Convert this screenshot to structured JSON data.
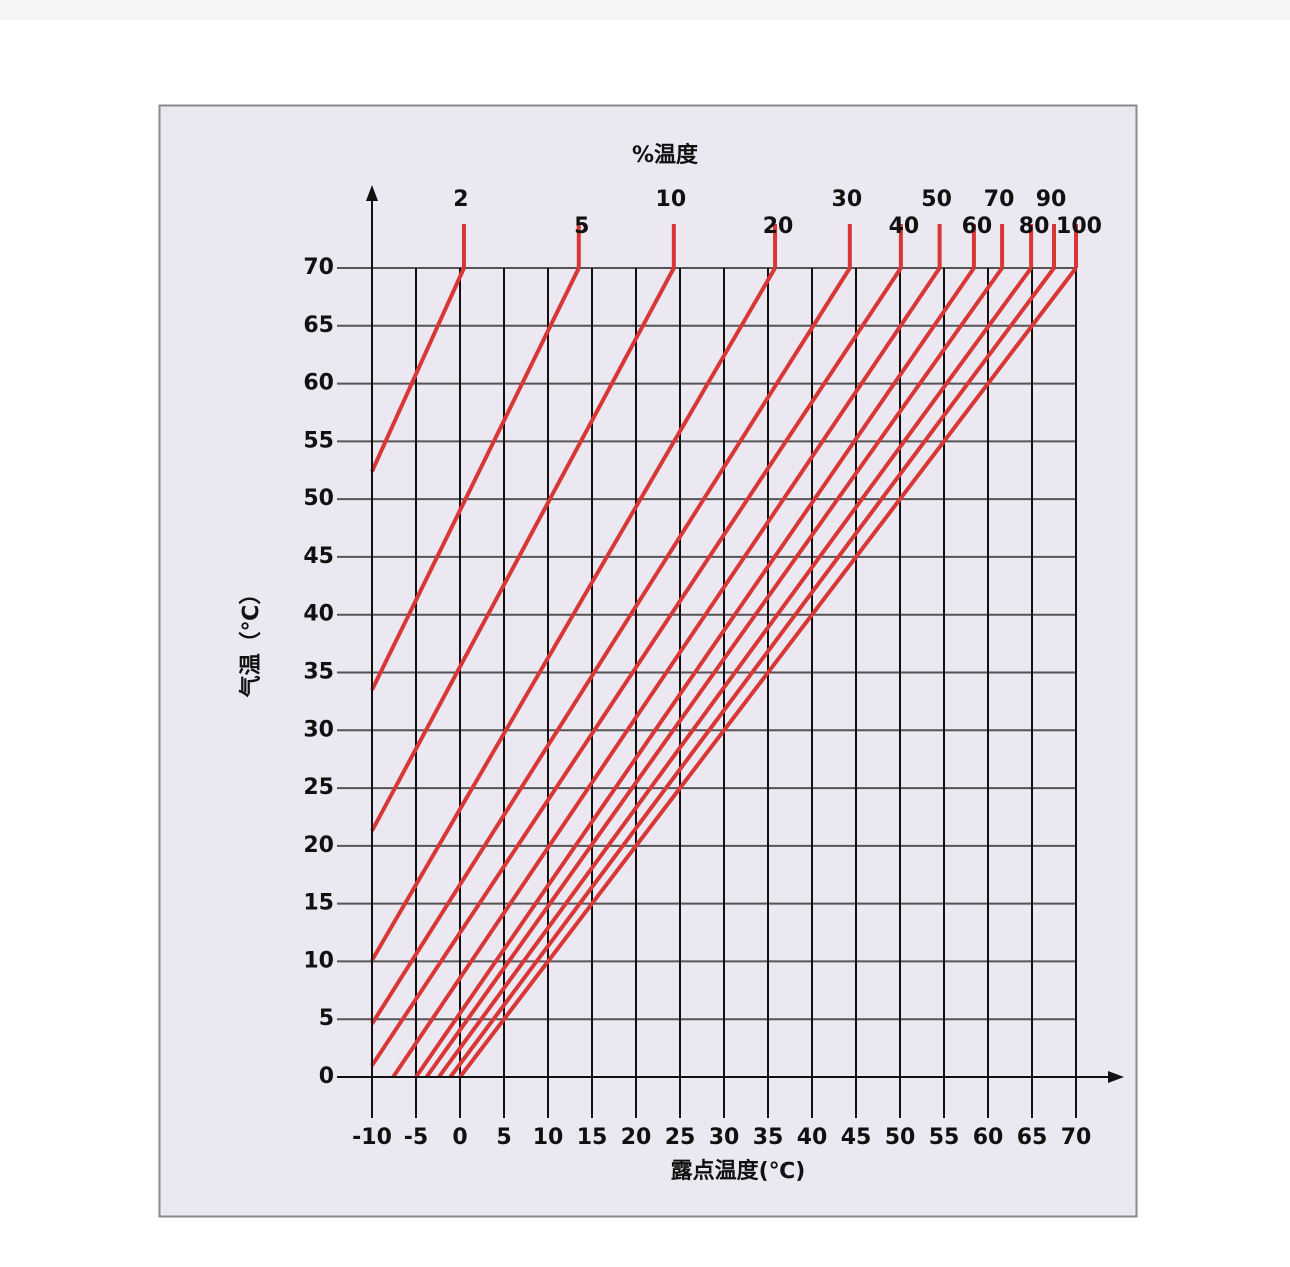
{
  "chart_data": {
    "type": "line",
    "title": "%温度",
    "x_label": "露点温度(℃)",
    "y_label": "气温（℃）",
    "xlim": [
      -10,
      70
    ],
    "ylim": [
      0,
      70
    ],
    "xticks": [
      -10,
      -5,
      0,
      5,
      10,
      15,
      20,
      25,
      30,
      35,
      40,
      45,
      50,
      55,
      60,
      65,
      70
    ],
    "yticks": [
      0,
      5,
      10,
      15,
      20,
      25,
      30,
      35,
      40,
      45,
      50,
      55,
      60,
      65,
      70
    ],
    "grid": true,
    "series": [
      {
        "name": "2",
        "color": "#d93636",
        "x": [
          -10,
          0.45
        ],
        "values": [
          52.4,
          70
        ]
      },
      {
        "name": "5",
        "color": "#d93636",
        "x": [
          -10,
          13.5
        ],
        "values": [
          33.5,
          70
        ]
      },
      {
        "name": "10",
        "color": "#d93636",
        "x": [
          -10,
          24.3
        ],
        "values": [
          21.3,
          70
        ]
      },
      {
        "name": "20",
        "color": "#d93636",
        "x": [
          -10,
          35.8
        ],
        "values": [
          10.1,
          70
        ]
      },
      {
        "name": "30",
        "color": "#d93636",
        "x": [
          -10,
          44.3
        ],
        "values": [
          4.6,
          70
        ]
      },
      {
        "name": "40",
        "color": "#d93636",
        "x": [
          -10,
          50.1
        ],
        "values": [
          1.0,
          70
        ]
      },
      {
        "name": "50",
        "color": "#d93636",
        "x": [
          -7.6,
          54.5
        ],
        "values": [
          0,
          70
        ]
      },
      {
        "name": "60",
        "color": "#d93636",
        "x": [
          -5,
          58.4
        ],
        "values": [
          0,
          70
        ]
      },
      {
        "name": "70",
        "color": "#d93636",
        "x": [
          -3.8,
          61.6
        ],
        "values": [
          0,
          70
        ]
      },
      {
        "name": "80",
        "color": "#d93636",
        "x": [
          -2.4,
          64.9
        ],
        "values": [
          0,
          70
        ]
      },
      {
        "name": "90",
        "color": "#d93636",
        "x": [
          -1.1,
          67.5
        ],
        "values": [
          0,
          70
        ]
      },
      {
        "name": "100",
        "color": "#d93636",
        "x": [
          0,
          70
        ],
        "values": [
          0,
          70
        ]
      }
    ]
  }
}
